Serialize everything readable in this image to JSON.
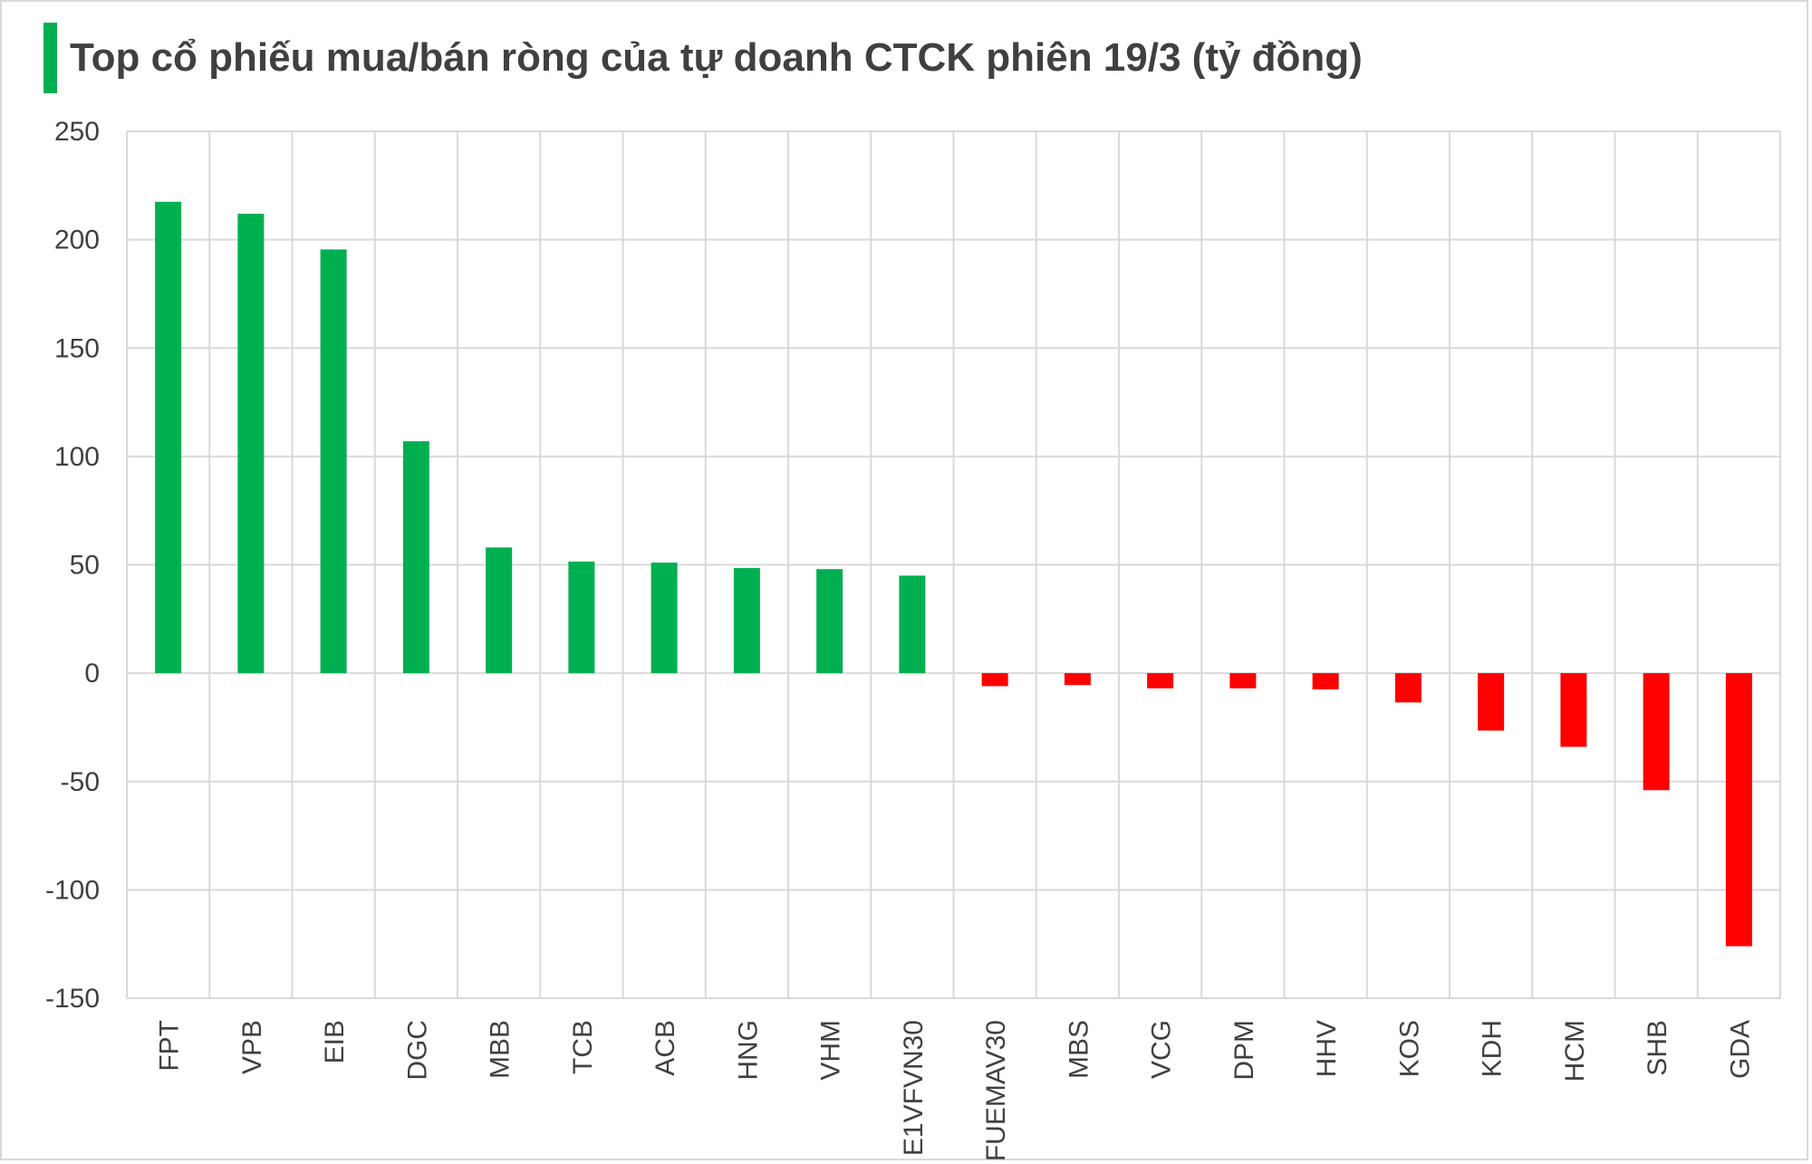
{
  "chart_data": {
    "type": "bar",
    "title": "Top cổ phiếu mua/bán ròng của tự doanh CTCK phiên 19/3 (tỷ đồng)",
    "xlabel": "",
    "ylabel": "",
    "ylim": [
      -150,
      250
    ],
    "yticks": [
      "250",
      "200",
      "150",
      "100",
      "50",
      "0",
      "-50",
      "-100",
      "-150"
    ],
    "grid": true,
    "legend": "none",
    "categories": [
      "FPT",
      "VPB",
      "EIB",
      "DGC",
      "MBB",
      "TCB",
      "ACB",
      "HNG",
      "VHM",
      "E1VFVN30",
      "FUEMAV30",
      "MBS",
      "VCG",
      "DPM",
      "HHV",
      "KOS",
      "KDH",
      "HCM",
      "SHB",
      "GDA"
    ],
    "values": [
      217.5,
      212,
      195.5,
      107,
      58,
      51.5,
      51,
      48.5,
      48,
      45,
      -6,
      -5.5,
      -7,
      -7,
      -7.5,
      -13.5,
      -26.5,
      -34,
      -54,
      -126
    ],
    "colors": {
      "positive": "#00b050",
      "negative": "#ff0000",
      "accent": "#00b050",
      "grid": "#d9d9d9",
      "text": "#404040"
    }
  }
}
